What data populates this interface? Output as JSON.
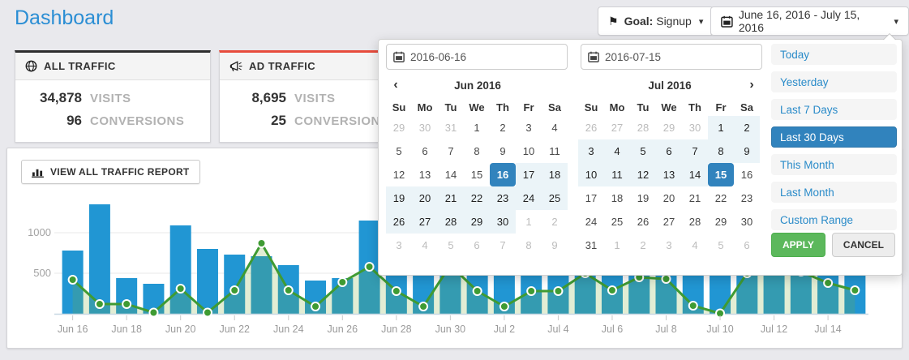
{
  "header": {
    "title": "Dashboard"
  },
  "icons": {
    "flag": "⚑",
    "chevron_down": "▾",
    "chevron_left": "‹",
    "chevron_right": "›"
  },
  "toolbar": {
    "goal_label": "Goal:",
    "goal_value": "Signup",
    "daterange_label": "June 16, 2016 - July 15, 2016"
  },
  "cards": [
    {
      "title": "ALL TRAFFIC",
      "rows": [
        {
          "value": "34,878",
          "label": "VISITS"
        },
        {
          "value": "96",
          "label": "CONVERSIONS"
        }
      ]
    },
    {
      "title": "AD TRAFFIC",
      "rows": [
        {
          "value": "8,695",
          "label": "VISITS"
        },
        {
          "value": "25",
          "label": "CONVERSIONS"
        }
      ]
    }
  ],
  "report_button": {
    "label": "VIEW ALL TRAFFIC REPORT"
  },
  "datepicker": {
    "start_input": "2016-06-16",
    "end_input": "2016-07-15",
    "weekdays": [
      "Su",
      "Mo",
      "Tu",
      "We",
      "Th",
      "Fr",
      "Sa"
    ],
    "months": [
      {
        "title": "Jun 2016",
        "nav": "prev",
        "weeks": [
          [
            "29o",
            "30o",
            "31o",
            "1",
            "2",
            "3",
            "4"
          ],
          [
            "5",
            "6",
            "7",
            "8",
            "9",
            "10",
            "11"
          ],
          [
            "12",
            "13",
            "14",
            "15",
            "16s",
            "17r",
            "18r"
          ],
          [
            "19r",
            "20r",
            "21r",
            "22r",
            "23r",
            "24r",
            "25r"
          ],
          [
            "26r",
            "27r",
            "28r",
            "29r",
            "30r",
            "1o",
            "2o"
          ],
          [
            "3o",
            "4o",
            "5o",
            "6o",
            "7o",
            "8o",
            "9o"
          ]
        ]
      },
      {
        "title": "Jul 2016",
        "nav": "next",
        "weeks": [
          [
            "26o",
            "27o",
            "28o",
            "29o",
            "30o",
            "1r",
            "2r"
          ],
          [
            "3r",
            "4r",
            "5r",
            "6r",
            "7r",
            "8r",
            "9r"
          ],
          [
            "10r",
            "11r",
            "12r",
            "13r",
            "14r",
            "15s",
            "16"
          ],
          [
            "17",
            "18",
            "19",
            "20",
            "21",
            "22",
            "23"
          ],
          [
            "24",
            "25",
            "26",
            "27",
            "28",
            "29",
            "30"
          ],
          [
            "31",
            "1o",
            "2o",
            "3o",
            "4o",
            "5o",
            "6o"
          ]
        ]
      }
    ],
    "ranges": [
      "Today",
      "Yesterday",
      "Last 7 Days",
      "Last 30 Days",
      "This Month",
      "Last Month",
      "Custom Range"
    ],
    "active_range": "Last 30 Days",
    "apply_label": "APPLY",
    "cancel_label": "CANCEL"
  },
  "chart_data": {
    "type": "bar",
    "x": [
      "Jun 16",
      "Jun 17",
      "Jun 18",
      "Jun 19",
      "Jun 20",
      "Jun 21",
      "Jun 22",
      "Jun 23",
      "Jun 24",
      "Jun 25",
      "Jun 26",
      "Jun 27",
      "Jun 28",
      "Jun 29",
      "Jun 30",
      "Jul 1",
      "Jul 2",
      "Jul 3",
      "Jul 4",
      "Jul 5",
      "Jul 6",
      "Jul 7",
      "Jul 8",
      "Jul 9",
      "Jul 10",
      "Jul 11",
      "Jul 12",
      "Jul 13",
      "Jul 14",
      "Jul 15"
    ],
    "series": [
      {
        "name": "bars",
        "type": "bar",
        "color": "#2196d3",
        "values": [
          780,
          1350,
          440,
          370,
          1090,
          800,
          730,
          710,
          600,
          410,
          440,
          1150,
          650,
          600,
          700,
          650,
          600,
          620,
          640,
          700,
          650,
          600,
          550,
          500,
          480,
          600,
          650,
          600,
          620,
          600
        ]
      },
      {
        "name": "line",
        "type": "line",
        "color": "#3f9b33",
        "area_fill": "rgba(125,175,60,0.22)",
        "values": [
          420,
          120,
          120,
          15,
          310,
          15,
          290,
          870,
          290,
          90,
          390,
          580,
          280,
          90,
          600,
          280,
          90,
          280,
          280,
          500,
          290,
          450,
          430,
          100,
          5,
          500,
          550,
          520,
          380,
          290
        ]
      }
    ],
    "xticklabels": [
      "Jun 16",
      "Jun 18",
      "Jun 20",
      "Jun 22",
      "Jun 24",
      "Jun 26",
      "Jun 28",
      "Jun 30",
      "Jul 2",
      "Jul 4",
      "Jul 6",
      "Jul 8",
      "Jul 10",
      "Jul 12",
      "Jul 14"
    ],
    "yticks": [
      500,
      1000
    ],
    "ylim": [
      0,
      1450
    ],
    "grid": true,
    "legend": "none"
  }
}
